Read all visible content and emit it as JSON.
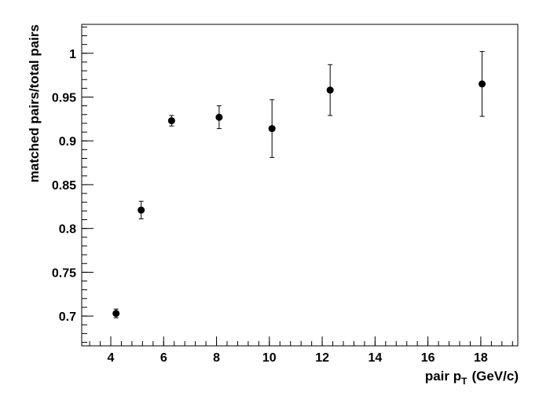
{
  "chart_data": {
    "type": "scatter",
    "xlabel": "pair p",
    "xlabel_sub": "T",
    "xlabel_unit": "(GeV/c)",
    "ylabel": "matched pairs/total pairs",
    "xlim": [
      2.9,
      19.4
    ],
    "ylim": [
      0.666,
      1.033
    ],
    "x_ticks": [
      4,
      6,
      8,
      10,
      12,
      14,
      16,
      18
    ],
    "y_ticks": [
      0.7,
      0.75,
      0.8,
      0.85,
      0.9,
      0.95,
      1
    ],
    "y_tick_labels": [
      "0.7",
      "0.75",
      "0.8",
      "0.85",
      "0.9",
      "0.95",
      "1"
    ],
    "x_minor_step": 0.4,
    "y_minor_step": 0.01,
    "grid": false,
    "marker_color": "#000000",
    "series": [
      {
        "points": [
          {
            "x": 4.2,
            "y": 0.703,
            "err": 0.005
          },
          {
            "x": 5.15,
            "y": 0.821,
            "err": 0.01
          },
          {
            "x": 6.3,
            "y": 0.923,
            "err": 0.006
          },
          {
            "x": 8.1,
            "y": 0.927,
            "err": 0.013
          },
          {
            "x": 10.1,
            "y": 0.914,
            "err": 0.033
          },
          {
            "x": 12.3,
            "y": 0.958,
            "err": 0.029
          },
          {
            "x": 18.05,
            "y": 0.965,
            "err": 0.037
          }
        ]
      }
    ]
  }
}
